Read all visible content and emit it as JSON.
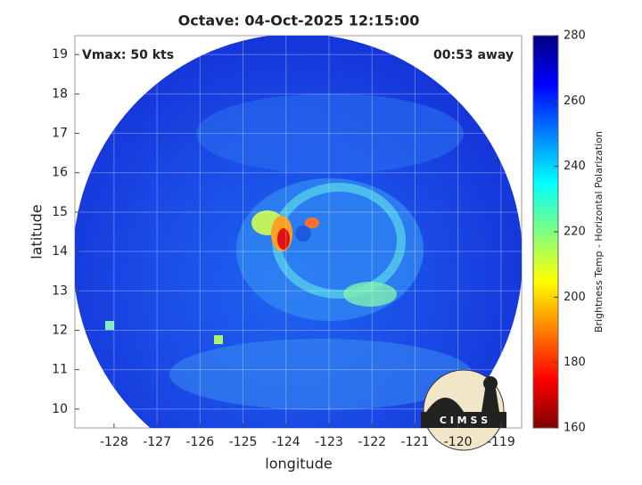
{
  "chart_data": {
    "type": "heatmap",
    "title": "Octave: 04-Oct-2025 12:15:00",
    "annotations": [
      "Vmax: 50 kts",
      "00:53 away"
    ],
    "xlabel": "longitude",
    "ylabel": "latitude",
    "xlim": [
      -128.91,
      -118.52
    ],
    "xticks": [
      -128,
      -127,
      -126,
      -125,
      -124,
      -123,
      -122,
      -121,
      -120,
      -119
    ],
    "ylim": [
      9.52,
      19.48
    ],
    "yticks": [
      10,
      11,
      12,
      13,
      14,
      15,
      16,
      17,
      18,
      19
    ],
    "grid": true,
    "colorbar": {
      "label": "Brightness Temp - Horizontal Polarization",
      "lim": [
        160,
        280
      ],
      "ticks": [
        160,
        180,
        200,
        220,
        240,
        260,
        280
      ],
      "colormap": [
        "#800000",
        "#ff0000",
        "#ff8000",
        "#ffff00",
        "#80ff80",
        "#00ffff",
        "#0080ff",
        "#0000ff",
        "#000080"
      ]
    },
    "logo_text": "C I M S S"
  }
}
